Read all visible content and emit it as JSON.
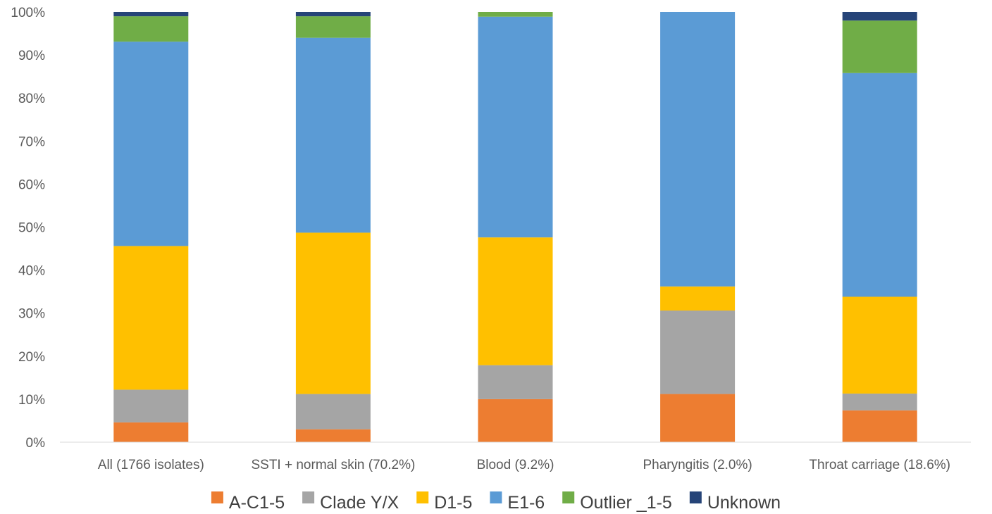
{
  "chart_data": {
    "type": "bar",
    "stacked": true,
    "percent_stacked": true,
    "categories": [
      "All (1766 isolates)",
      "SSTI +  normal skin (70.2%)",
      "Blood  (9.2%)",
      "Pharyngitis  (2.0%)",
      "Throat carriage  (18.6%)"
    ],
    "series": [
      {
        "name": "A-C1-5",
        "color": "#ED7D31",
        "values": [
          4.6,
          3.0,
          10.0,
          11.2,
          7.4
        ]
      },
      {
        "name": "Clade Y/X",
        "color": "#A5A5A5",
        "values": [
          7.6,
          8.2,
          7.9,
          19.4,
          3.9
        ]
      },
      {
        "name": "D1-5",
        "color": "#FFC000",
        "values": [
          33.4,
          37.5,
          29.7,
          5.6,
          22.5
        ]
      },
      {
        "name": "E1-6",
        "color": "#5B9BD5",
        "values": [
          47.5,
          45.3,
          51.3,
          63.8,
          52.0
        ]
      },
      {
        "name": "Outlier _1-5",
        "color": "#70AD47",
        "values": [
          5.9,
          5.0,
          1.1,
          0.0,
          12.2
        ]
      },
      {
        "name": "Unknown",
        "color": "#264478",
        "values": [
          1.0,
          1.0,
          0.0,
          0.0,
          2.0
        ]
      }
    ],
    "ylim": [
      0,
      100
    ],
    "yticks": [
      "0%",
      "10%",
      "20%",
      "30%",
      "40%",
      "50%",
      "60%",
      "70%",
      "80%",
      "90%",
      "100%"
    ],
    "title": "",
    "xlabel": "",
    "ylabel": "",
    "grid": false,
    "legend_position": "bottom"
  }
}
